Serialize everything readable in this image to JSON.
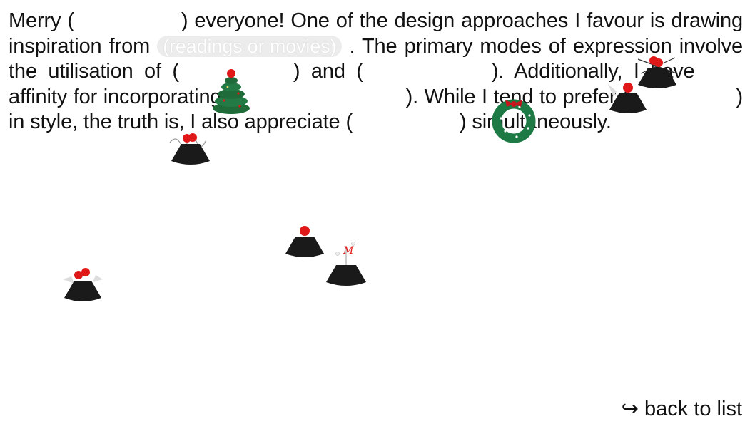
{
  "story": {
    "merry": "Merry (",
    "gap1_close": ") everyone! One of the design approaches I favour is drawing inspiration from",
    "pill": "(readings or movies)",
    "after_pill": ". The primary modes of expression involve the utilisation of (",
    "gap3_close": ") and (",
    "gap4_close": "). Additionally, I have",
    "after_have": "affinity for incorporating (",
    "gap5_close": "). While I tend to prefer (",
    "gap6_close": ") in style, the truth is, I also appreciate (",
    "gap7_close": ") simultaneously."
  },
  "nav": {
    "back_label": "↪ back to list"
  },
  "icons": {
    "tree": "christmas-tree-icon",
    "wreath": "christmas-wreath-icon",
    "ornament_cone": "cone-ornament-icon"
  },
  "colors": {
    "cone": "#1a1a1a",
    "berry": "#e01818",
    "tree_green": "#1f6b3a",
    "wreath_green": "#1e7a45",
    "bow_red": "#c4161c"
  }
}
